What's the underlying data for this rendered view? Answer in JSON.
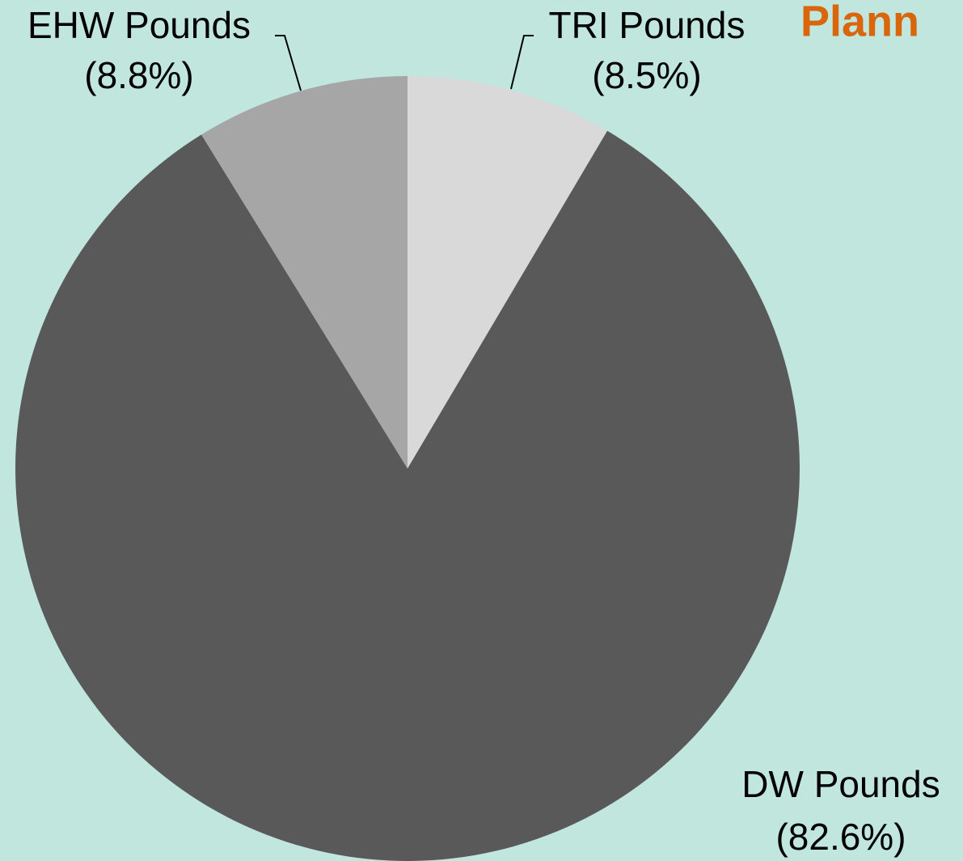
{
  "chart_data": {
    "type": "pie",
    "title": "Plann",
    "categories": [
      "TRI Pounds",
      "DW Pounds",
      "EHW Pounds"
    ],
    "values": [
      8.5,
      82.6,
      8.8
    ],
    "value_labels": [
      "(8.5%)",
      "(82.6%)",
      "(8.8%)"
    ],
    "colors": [
      "#d9d9d9",
      "#595959",
      "#a6a6a6"
    ]
  }
}
